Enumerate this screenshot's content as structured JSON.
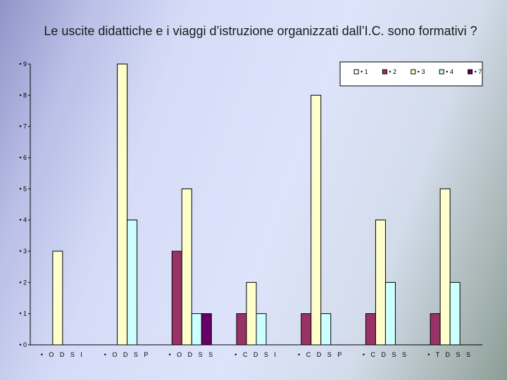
{
  "chart_data": {
    "type": "bar",
    "title": "Le uscite didattiche e i viaggi d’istruzione organizzati dall’I.C. sono formativi ?",
    "categories": [
      "• O D S I",
      "• O D S P",
      "• O D S S",
      "• C D S I",
      "• C D S P",
      "• C D S S",
      "• T D S S"
    ],
    "y_tick_labels": [
      "• 0",
      "• 1",
      "• 2",
      "• 3",
      "• 4",
      "• 5",
      "• 6",
      "• 7",
      "• 8",
      "• 9"
    ],
    "ylim": [
      0,
      9
    ],
    "grid": false,
    "legend_position": "top-right",
    "series": [
      {
        "name": "• 1",
        "color": "#ffffff",
        "values": [
          0,
          0,
          0,
          0,
          0,
          0,
          0
        ]
      },
      {
        "name": "• 2",
        "color": "#993366",
        "values": [
          0,
          0,
          3,
          1,
          1,
          1,
          1
        ]
      },
      {
        "name": "• 3",
        "color": "#ffffcc",
        "values": [
          3,
          9,
          5,
          2,
          8,
          4,
          5
        ]
      },
      {
        "name": "• 4",
        "color": "#ccffff",
        "values": [
          0,
          4,
          1,
          1,
          1,
          2,
          2
        ]
      },
      {
        "name": "• 7",
        "color": "#660066",
        "values": [
          0,
          0,
          1,
          0,
          0,
          0,
          0
        ]
      }
    ]
  }
}
